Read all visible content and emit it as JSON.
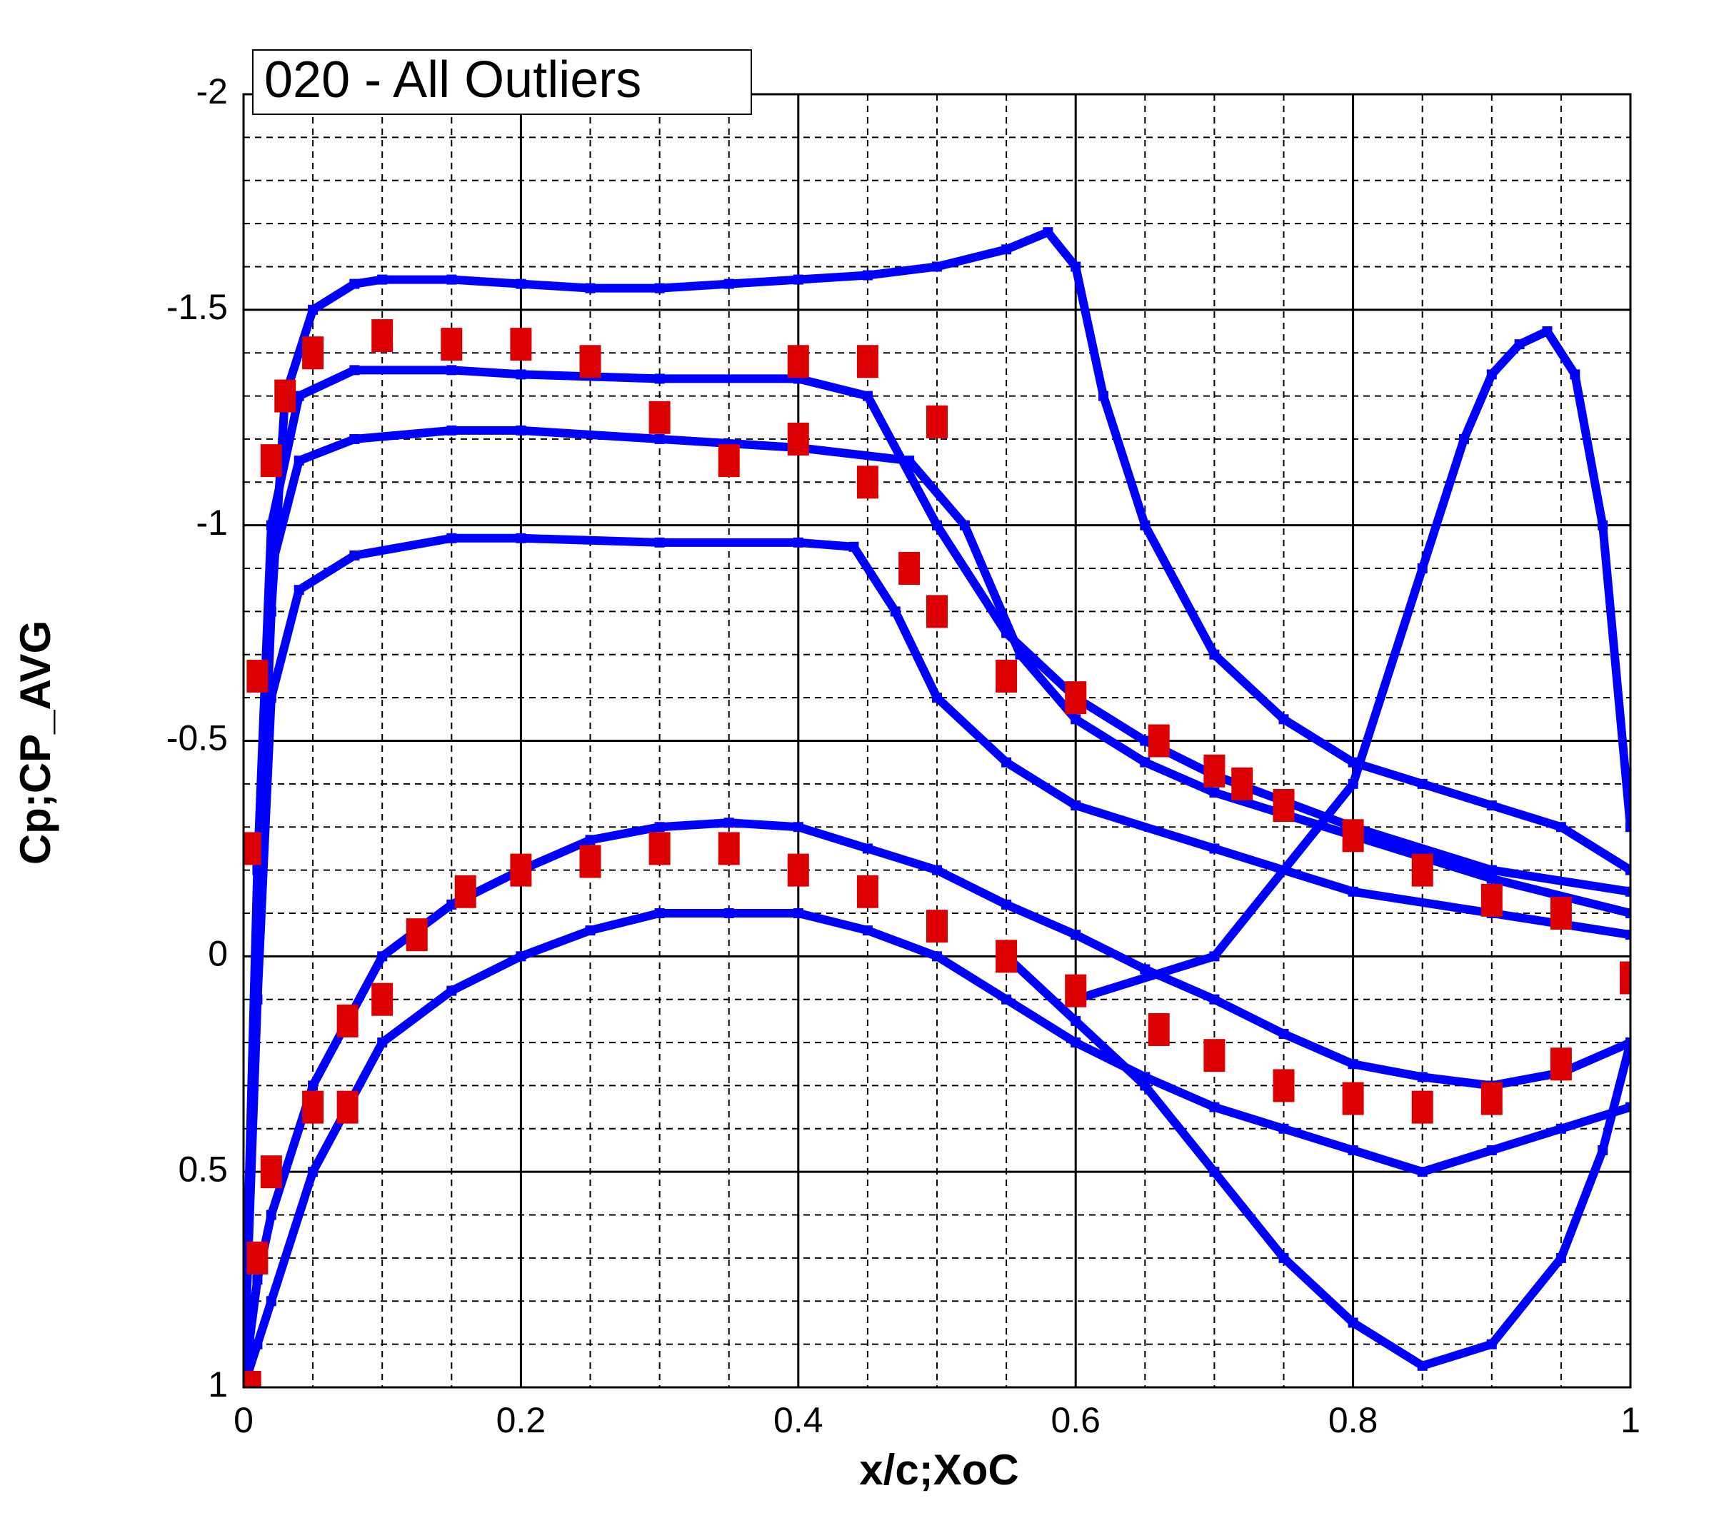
{
  "chart_data": {
    "type": "scatter",
    "title": "020 - All Outliers",
    "x_label": "x/c;XoC",
    "y_label": "Cp;CP_AVG",
    "xlim": [
      0,
      1
    ],
    "ylim": [
      -2,
      1
    ],
    "y_reversed": true,
    "xticks": [
      0,
      0.2,
      0.4,
      0.6,
      0.8,
      1
    ],
    "yticks": [
      -2,
      -1.5,
      -1,
      -0.5,
      0,
      0.5,
      1
    ],
    "xminorticks": [
      0.05,
      0.1,
      0.15,
      0.25,
      0.3,
      0.35,
      0.45,
      0.5,
      0.55,
      0.65,
      0.7,
      0.75,
      0.85,
      0.9,
      0.95
    ],
    "yminorticks": [
      -1.9,
      -1.8,
      -1.7,
      -1.6,
      -1.4,
      -1.3,
      -1.2,
      -1.1,
      -0.9,
      -0.8,
      -0.7,
      -0.6,
      -0.4,
      -0.3,
      -0.2,
      -0.1,
      0.1,
      0.2,
      0.3,
      0.4,
      0.6,
      0.7,
      0.8,
      0.9
    ],
    "grid": true,
    "series": [
      {
        "color": "#0000ff",
        "mode": "lines+markers",
        "x": [
          0,
          0.01,
          0.02,
          0.03,
          0.05,
          0.08,
          0.1,
          0.15,
          0.2,
          0.25,
          0.3,
          0.35,
          0.4,
          0.45,
          0.5,
          0.55,
          0.58,
          0.6,
          0.62,
          0.65,
          0.7,
          0.75,
          0.8,
          0.85,
          0.9,
          0.95,
          1
        ],
        "values": [
          1,
          0,
          -0.8,
          -1.3,
          -1.5,
          -1.56,
          -1.57,
          -1.57,
          -1.56,
          -1.55,
          -1.55,
          -1.56,
          -1.57,
          -1.58,
          -1.6,
          -1.64,
          -1.68,
          -1.6,
          -1.3,
          -1.0,
          -0.7,
          -0.55,
          -0.45,
          -0.4,
          -0.35,
          -0.3,
          -0.2
        ]
      },
      {
        "color": "#0000ff",
        "mode": "lines+markers",
        "x": [
          0,
          0.01,
          0.02,
          0.04,
          0.08,
          0.15,
          0.2,
          0.3,
          0.4,
          0.45,
          0.5,
          0.55,
          0.6,
          0.65,
          0.7,
          0.8,
          0.9,
          1
        ],
        "values": [
          1,
          -0.2,
          -1.0,
          -1.3,
          -1.36,
          -1.36,
          -1.35,
          -1.34,
          -1.34,
          -1.3,
          -1.0,
          -0.75,
          -0.6,
          -0.5,
          -0.42,
          -0.3,
          -0.2,
          -0.15
        ]
      },
      {
        "color": "#0000ff",
        "mode": "lines+markers",
        "x": [
          0,
          0.01,
          0.02,
          0.04,
          0.08,
          0.15,
          0.2,
          0.3,
          0.4,
          0.48,
          0.52,
          0.56,
          0.6,
          0.65,
          0.7,
          0.8,
          0.9,
          1
        ],
        "values": [
          1,
          -0.1,
          -0.9,
          -1.15,
          -1.2,
          -1.22,
          -1.22,
          -1.2,
          -1.18,
          -1.15,
          -1.0,
          -0.7,
          -0.55,
          -0.45,
          -0.38,
          -0.28,
          -0.18,
          -0.1
        ]
      },
      {
        "color": "#0000ff",
        "mode": "lines+markers",
        "x": [
          0,
          0.01,
          0.02,
          0.04,
          0.08,
          0.15,
          0.2,
          0.3,
          0.4,
          0.44,
          0.47,
          0.5,
          0.55,
          0.6,
          0.7,
          0.8,
          0.9,
          1
        ],
        "values": [
          1,
          0.1,
          -0.6,
          -0.85,
          -0.93,
          -0.97,
          -0.97,
          -0.96,
          -0.96,
          -0.95,
          -0.8,
          -0.6,
          -0.45,
          -0.35,
          -0.25,
          -0.15,
          -0.1,
          -0.05
        ]
      },
      {
        "color": "#0000ff",
        "mode": "lines+markers",
        "x": [
          0,
          0.01,
          0.02,
          0.05,
          0.1,
          0.15,
          0.2,
          0.25,
          0.3,
          0.35,
          0.4,
          0.45,
          0.5,
          0.55,
          0.6,
          0.65,
          0.7,
          0.75,
          0.8,
          0.85,
          0.9,
          0.95,
          1
        ],
        "values": [
          1,
          0.75,
          0.6,
          0.3,
          0,
          -0.12,
          -0.2,
          -0.27,
          -0.3,
          -0.31,
          -0.3,
          -0.25,
          -0.2,
          -0.12,
          -0.05,
          0.03,
          0.1,
          0.18,
          0.25,
          0.28,
          0.3,
          0.27,
          0.2
        ]
      },
      {
        "color": "#0000ff",
        "mode": "lines+markers",
        "x": [
          0,
          0.01,
          0.02,
          0.05,
          0.1,
          0.15,
          0.2,
          0.25,
          0.3,
          0.35,
          0.4,
          0.45,
          0.5,
          0.55,
          0.6,
          0.65,
          0.7,
          0.75,
          0.8,
          0.85,
          0.9,
          0.95,
          1
        ],
        "values": [
          1,
          0.9,
          0.8,
          0.5,
          0.2,
          0.08,
          0,
          -0.06,
          -0.1,
          -0.1,
          -0.1,
          -0.06,
          0,
          0.1,
          0.2,
          0.28,
          0.35,
          0.4,
          0.45,
          0.5,
          0.45,
          0.4,
          0.35
        ]
      },
      {
        "color": "#0000ff",
        "mode": "lines+markers",
        "x": [
          0.55,
          0.6,
          0.65,
          0.7,
          0.75,
          0.8,
          0.85,
          0.9,
          0.95,
          0.98,
          1
        ],
        "values": [
          0.0,
          0.15,
          0.3,
          0.5,
          0.7,
          0.85,
          0.95,
          0.9,
          0.7,
          0.45,
          0.2
        ]
      },
      {
        "color": "#0000ff",
        "mode": "lines+markers",
        "x": [
          0.6,
          0.7,
          0.75,
          0.8,
          0.85,
          0.88,
          0.9,
          0.92,
          0.94,
          0.96,
          0.98,
          1
        ],
        "values": [
          0.1,
          0.0,
          -0.2,
          -0.4,
          -0.9,
          -1.2,
          -1.35,
          -1.42,
          -1.45,
          -1.35,
          -1.0,
          -0.3
        ]
      },
      {
        "color": "#dd0000",
        "mode": "markers",
        "x": [
          0.005,
          0.01,
          0.02,
          0.05,
          0.075,
          0.075,
          0.1,
          0.125,
          0.16,
          0.2,
          0.25,
          0.3,
          0.35,
          0.4,
          0.45,
          0.5,
          0.55,
          0.6,
          0.66,
          0.7,
          0.75,
          0.8,
          0.85,
          0.9,
          0.95,
          1,
          0.95,
          0.9,
          0.85,
          0.8,
          0.75,
          0.72,
          0.7,
          0.66,
          0.6,
          0.55,
          0.5,
          0.48,
          0.45,
          0.4,
          0.35,
          0.3,
          0.25,
          0.2,
          0.15,
          0.1,
          0.05,
          0.03,
          0.02,
          0.01,
          0.005,
          0.4,
          0.45,
          0.5
        ],
        "values": [
          1,
          0.7,
          0.5,
          0.35,
          0.35,
          0.15,
          0.1,
          -0.05,
          -0.15,
          -0.2,
          -0.22,
          -0.25,
          -0.25,
          -0.2,
          -0.15,
          -0.07,
          0,
          0.08,
          0.17,
          0.23,
          0.3,
          0.33,
          0.35,
          0.33,
          0.25,
          0.05,
          -0.1,
          -0.13,
          -0.2,
          -0.28,
          -0.35,
          -0.4,
          -0.43,
          -0.5,
          -0.6,
          -0.65,
          -0.8,
          -0.9,
          -1.1,
          -1.2,
          -1.15,
          -1.25,
          -1.38,
          -1.42,
          -1.42,
          -1.44,
          -1.4,
          -1.3,
          -1.15,
          -0.65,
          -0.25,
          -1.38,
          -1.38,
          -1.24
        ]
      }
    ]
  }
}
